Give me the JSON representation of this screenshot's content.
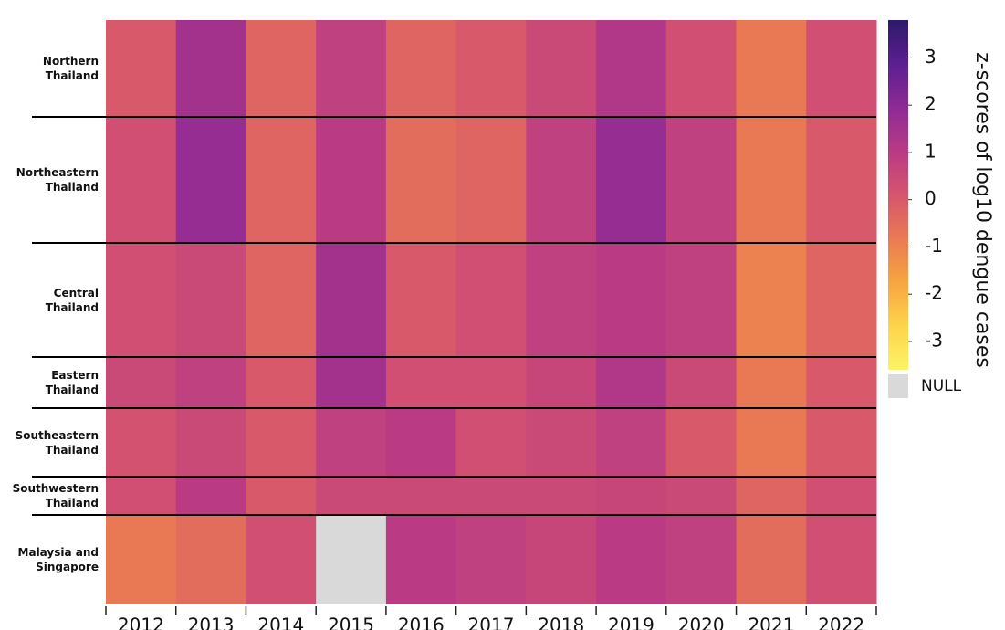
{
  "chart_data": {
    "type": "heatmap",
    "categories": [
      "2012",
      "2013",
      "2014",
      "2015",
      "2016",
      "2017",
      "2018",
      "2019",
      "2020",
      "2021",
      "2022"
    ],
    "series": [
      {
        "name": "Northern Thailand",
        "values": [
          0,
          1.5,
          -0.3,
          0.8,
          -0.3,
          0,
          0.5,
          1.2,
          0.3,
          -0.8,
          0.3
        ]
      },
      {
        "name": "Northeastern Thailand",
        "values": [
          0.3,
          1.8,
          -0.3,
          1,
          -0.5,
          -0.3,
          0.8,
          1.8,
          0.8,
          -0.8,
          0
        ]
      },
      {
        "name": "Central Thailand",
        "values": [
          0.3,
          0.5,
          -0.3,
          1.5,
          0,
          0.3,
          0.8,
          1,
          0.8,
          -1,
          -0.3
        ]
      },
      {
        "name": "Eastern Thailand",
        "values": [
          0.5,
          0.8,
          0,
          1.5,
          0.3,
          0.3,
          0.6,
          1.2,
          0.5,
          -0.8,
          0
        ]
      },
      {
        "name": "Southeastern Thailand",
        "values": [
          0.2,
          0.5,
          0,
          0.8,
          1,
          0.3,
          0.5,
          0.8,
          0,
          -0.8,
          0
        ]
      },
      {
        "name": "Southwestern Thailand",
        "values": [
          0.3,
          1,
          0,
          0.5,
          0.5,
          0.5,
          0.5,
          0.6,
          0.5,
          -0.3,
          0.3
        ]
      },
      {
        "name": "Malaysia and Singapore",
        "values": [
          -0.8,
          -0.5,
          0.3,
          null,
          1,
          0.8,
          0.6,
          1,
          0.8,
          -0.5,
          0.3
        ]
      }
    ],
    "colorbar": {
      "title": "z-scores of log10 dengue cases",
      "lim": [
        -3.6,
        3.8
      ],
      "ticks": [
        -3,
        -2,
        -1,
        0,
        1,
        2,
        3
      ],
      "colors": [
        "#fbf465",
        "#fdd44a",
        "#f7a541",
        "#ea7a53",
        "#d6556d",
        "#b93a85",
        "#8e2a95",
        "#5b1f8f",
        "#2d1a6b"
      ],
      "null_label": "NULL",
      "null_color": "#d9d9d9"
    }
  }
}
